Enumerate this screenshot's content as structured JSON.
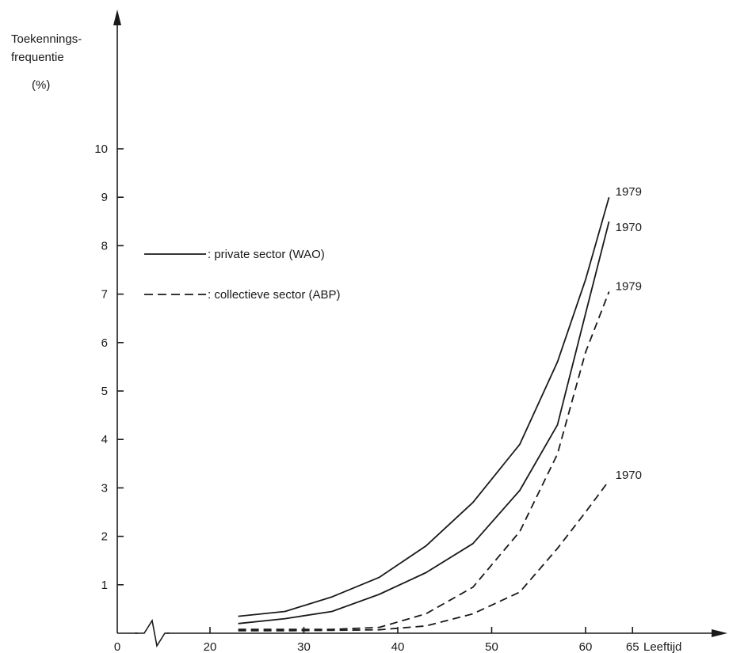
{
  "chart_data": {
    "type": "line",
    "ylabel": [
      "Toekennings-",
      "frequentie",
      "(%)"
    ],
    "xlabel": "Leeftijd",
    "x_ticks": [
      0,
      20,
      30,
      40,
      50,
      60,
      65
    ],
    "y_ticks": [
      1,
      2,
      3,
      4,
      5,
      6,
      7,
      8,
      9,
      10
    ],
    "xlim": [
      0,
      65
    ],
    "ylim": [
      0,
      10
    ],
    "x_axis_break": true,
    "grid": false,
    "legend_position": "upper-left",
    "legend": [
      {
        "style": "solid",
        "label": ": private sector (WAO)"
      },
      {
        "style": "dashed",
        "label": ": collectieve sector (ABP)"
      }
    ],
    "series": [
      {
        "label": "1979",
        "style": "solid",
        "x": [
          23,
          28,
          33,
          38,
          43,
          48,
          53,
          57,
          60,
          62.5
        ],
        "y": [
          0.35,
          0.45,
          0.75,
          1.15,
          1.8,
          2.7,
          3.9,
          5.6,
          7.3,
          9.0
        ]
      },
      {
        "label": "1970",
        "style": "solid",
        "x": [
          23,
          28,
          33,
          38,
          43,
          48,
          53,
          57,
          60,
          62.5
        ],
        "y": [
          0.2,
          0.3,
          0.45,
          0.8,
          1.25,
          1.85,
          2.95,
          4.3,
          6.6,
          8.5
        ]
      },
      {
        "label": "1979",
        "style": "dashed",
        "x": [
          23,
          28,
          33,
          38,
          43,
          48,
          53,
          57,
          60,
          62.5
        ],
        "y": [
          0.08,
          0.08,
          0.08,
          0.12,
          0.4,
          0.95,
          2.1,
          3.7,
          5.8,
          7.05
        ]
      },
      {
        "label": "1970",
        "style": "dashed",
        "x": [
          23,
          28,
          33,
          38,
          43,
          48,
          53,
          57,
          60,
          62.5
        ],
        "y": [
          0.05,
          0.05,
          0.06,
          0.07,
          0.15,
          0.4,
          0.85,
          1.75,
          2.5,
          3.15
        ]
      }
    ]
  }
}
